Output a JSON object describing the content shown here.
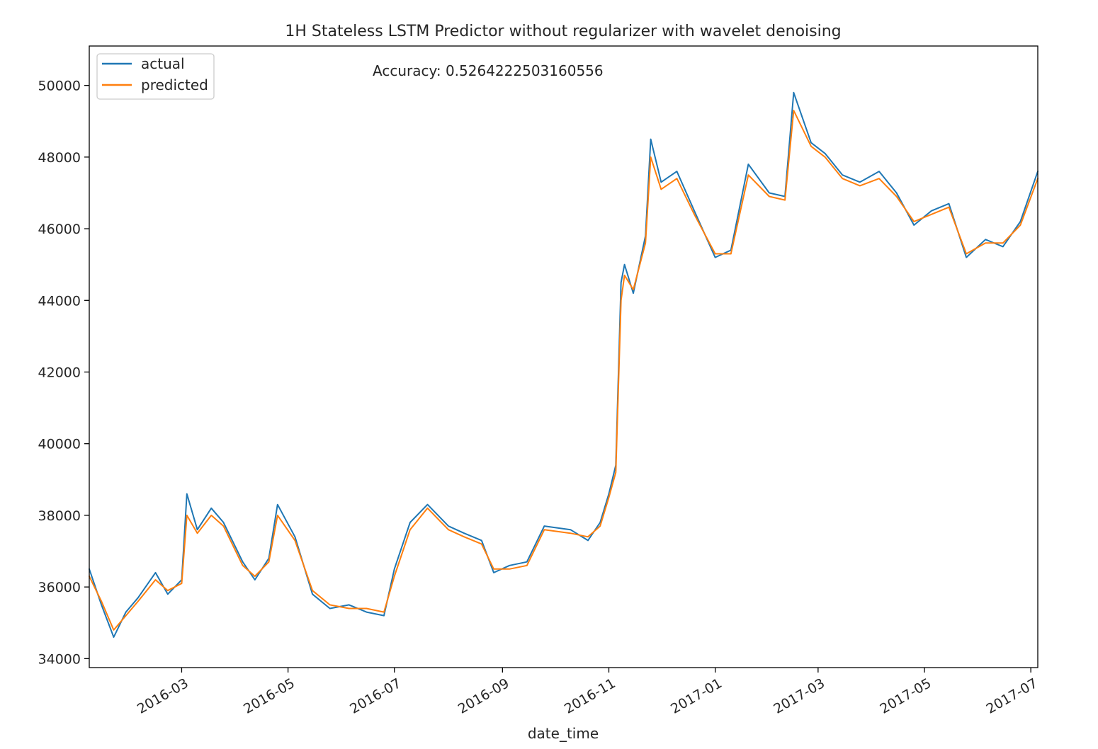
{
  "chart_data": {
    "type": "line",
    "title": "1H Stateless LSTM Predictor without regularizer with wavelet denoising",
    "xlabel": "date_time",
    "ylabel": "",
    "annotation": "Accuracy: 0.5264222503160556",
    "legend_position": "upper left",
    "grid": false,
    "xlim": [
      "2016-01-08",
      "2017-07-05"
    ],
    "ylim": [
      33750,
      51100
    ],
    "x_ticks": [
      "2016-03",
      "2016-05",
      "2016-07",
      "2016-09",
      "2016-11",
      "2017-01",
      "2017-03",
      "2017-05",
      "2017-07"
    ],
    "y_ticks": [
      34000,
      36000,
      38000,
      40000,
      42000,
      44000,
      46000,
      48000,
      50000
    ],
    "colors": {
      "actual": "#1f77b4",
      "predicted": "#ff7f0e"
    },
    "x": [
      "2016-01-08",
      "2016-01-15",
      "2016-01-22",
      "2016-01-29",
      "2016-02-05",
      "2016-02-15",
      "2016-02-22",
      "2016-03-01",
      "2016-03-04",
      "2016-03-10",
      "2016-03-18",
      "2016-03-25",
      "2016-04-05",
      "2016-04-12",
      "2016-04-20",
      "2016-04-25",
      "2016-05-05",
      "2016-05-15",
      "2016-05-25",
      "2016-06-05",
      "2016-06-15",
      "2016-06-25",
      "2016-07-01",
      "2016-07-10",
      "2016-07-20",
      "2016-08-01",
      "2016-08-10",
      "2016-08-20",
      "2016-08-27",
      "2016-09-05",
      "2016-09-15",
      "2016-09-25",
      "2016-10-10",
      "2016-10-20",
      "2016-10-27",
      "2016-11-01",
      "2016-11-05",
      "2016-11-08",
      "2016-11-10",
      "2016-11-15",
      "2016-11-22",
      "2016-11-25",
      "2016-12-01",
      "2016-12-10",
      "2016-12-20",
      "2017-01-01",
      "2017-01-10",
      "2017-01-20",
      "2017-02-01",
      "2017-02-10",
      "2017-02-15",
      "2017-02-25",
      "2017-03-05",
      "2017-03-15",
      "2017-03-25",
      "2017-04-05",
      "2017-04-15",
      "2017-04-25",
      "2017-05-05",
      "2017-05-15",
      "2017-05-25",
      "2017-06-05",
      "2017-06-15",
      "2017-06-25",
      "2017-07-05"
    ],
    "series": [
      {
        "name": "actual",
        "values": [
          36500,
          35500,
          34600,
          35300,
          35700,
          36400,
          35800,
          36200,
          38600,
          37600,
          38200,
          37800,
          36700,
          36200,
          36800,
          38300,
          37400,
          35800,
          35400,
          35500,
          35300,
          35200,
          36500,
          37800,
          38300,
          37700,
          37500,
          37300,
          36400,
          36600,
          36700,
          37700,
          37600,
          37300,
          37800,
          38600,
          39400,
          44500,
          45000,
          44200,
          45800,
          48500,
          47300,
          47600,
          46500,
          45200,
          45400,
          47800,
          47000,
          46900,
          49800,
          48400,
          48100,
          47500,
          47300,
          47600,
          47000,
          46100,
          46500,
          46700,
          45200,
          45700,
          45500,
          46200,
          47600
        ]
      },
      {
        "name": "predicted",
        "values": [
          36300,
          35600,
          34800,
          35200,
          35600,
          36200,
          35900,
          36100,
          38000,
          37500,
          38000,
          37700,
          36600,
          36300,
          36700,
          38000,
          37300,
          35900,
          35500,
          35400,
          35400,
          35300,
          36300,
          37600,
          38200,
          37600,
          37400,
          37200,
          36500,
          36500,
          36600,
          37600,
          37500,
          37400,
          37700,
          38500,
          39200,
          44000,
          44700,
          44300,
          45600,
          48000,
          47100,
          47400,
          46400,
          45300,
          45300,
          47500,
          46900,
          46800,
          49300,
          48300,
          48000,
          47400,
          47200,
          47400,
          46900,
          46200,
          46400,
          46600,
          45300,
          45600,
          45600,
          46100,
          47400
        ]
      }
    ]
  }
}
